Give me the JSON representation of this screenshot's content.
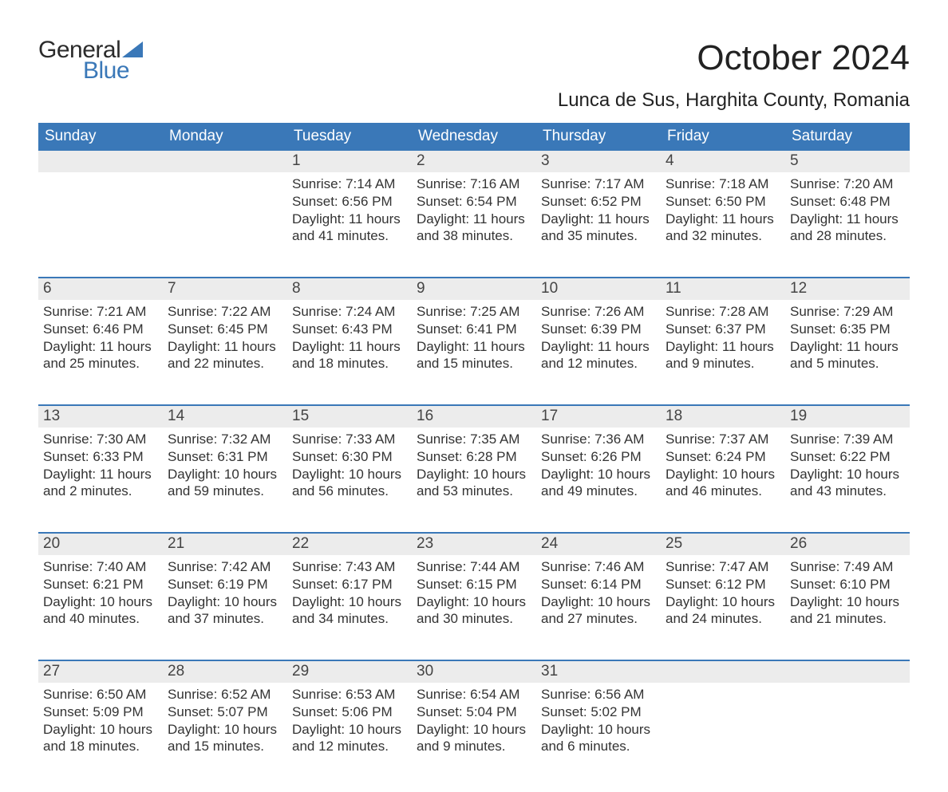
{
  "logo": {
    "top": "General",
    "bottom": "Blue",
    "top_color": "#2b2b2b",
    "bottom_color": "#3a78b8"
  },
  "title": "October 2024",
  "location": "Lunca de Sus, Harghita County, Romania",
  "colors": {
    "header_bg": "#3a78b8",
    "header_fg": "#ffffff",
    "daynum_bg": "#ececec",
    "week_border": "#3a78b8",
    "text": "#333333",
    "background": "#ffffff"
  },
  "typography": {
    "title_fontsize": 44,
    "location_fontsize": 24,
    "dow_fontsize": 19,
    "daynum_fontsize": 19,
    "body_fontsize": 17
  },
  "days_of_week": [
    "Sunday",
    "Monday",
    "Tuesday",
    "Wednesday",
    "Thursday",
    "Friday",
    "Saturday"
  ],
  "weeks": [
    [
      {
        "n": "",
        "sr": "",
        "ss": "",
        "dl1": "",
        "dl2": ""
      },
      {
        "n": "",
        "sr": "",
        "ss": "",
        "dl1": "",
        "dl2": ""
      },
      {
        "n": "1",
        "sr": "Sunrise: 7:14 AM",
        "ss": "Sunset: 6:56 PM",
        "dl1": "Daylight: 11 hours",
        "dl2": "and 41 minutes."
      },
      {
        "n": "2",
        "sr": "Sunrise: 7:16 AM",
        "ss": "Sunset: 6:54 PM",
        "dl1": "Daylight: 11 hours",
        "dl2": "and 38 minutes."
      },
      {
        "n": "3",
        "sr": "Sunrise: 7:17 AM",
        "ss": "Sunset: 6:52 PM",
        "dl1": "Daylight: 11 hours",
        "dl2": "and 35 minutes."
      },
      {
        "n": "4",
        "sr": "Sunrise: 7:18 AM",
        "ss": "Sunset: 6:50 PM",
        "dl1": "Daylight: 11 hours",
        "dl2": "and 32 minutes."
      },
      {
        "n": "5",
        "sr": "Sunrise: 7:20 AM",
        "ss": "Sunset: 6:48 PM",
        "dl1": "Daylight: 11 hours",
        "dl2": "and 28 minutes."
      }
    ],
    [
      {
        "n": "6",
        "sr": "Sunrise: 7:21 AM",
        "ss": "Sunset: 6:46 PM",
        "dl1": "Daylight: 11 hours",
        "dl2": "and 25 minutes."
      },
      {
        "n": "7",
        "sr": "Sunrise: 7:22 AM",
        "ss": "Sunset: 6:45 PM",
        "dl1": "Daylight: 11 hours",
        "dl2": "and 22 minutes."
      },
      {
        "n": "8",
        "sr": "Sunrise: 7:24 AM",
        "ss": "Sunset: 6:43 PM",
        "dl1": "Daylight: 11 hours",
        "dl2": "and 18 minutes."
      },
      {
        "n": "9",
        "sr": "Sunrise: 7:25 AM",
        "ss": "Sunset: 6:41 PM",
        "dl1": "Daylight: 11 hours",
        "dl2": "and 15 minutes."
      },
      {
        "n": "10",
        "sr": "Sunrise: 7:26 AM",
        "ss": "Sunset: 6:39 PM",
        "dl1": "Daylight: 11 hours",
        "dl2": "and 12 minutes."
      },
      {
        "n": "11",
        "sr": "Sunrise: 7:28 AM",
        "ss": "Sunset: 6:37 PM",
        "dl1": "Daylight: 11 hours",
        "dl2": "and 9 minutes."
      },
      {
        "n": "12",
        "sr": "Sunrise: 7:29 AM",
        "ss": "Sunset: 6:35 PM",
        "dl1": "Daylight: 11 hours",
        "dl2": "and 5 minutes."
      }
    ],
    [
      {
        "n": "13",
        "sr": "Sunrise: 7:30 AM",
        "ss": "Sunset: 6:33 PM",
        "dl1": "Daylight: 11 hours",
        "dl2": "and 2 minutes."
      },
      {
        "n": "14",
        "sr": "Sunrise: 7:32 AM",
        "ss": "Sunset: 6:31 PM",
        "dl1": "Daylight: 10 hours",
        "dl2": "and 59 minutes."
      },
      {
        "n": "15",
        "sr": "Sunrise: 7:33 AM",
        "ss": "Sunset: 6:30 PM",
        "dl1": "Daylight: 10 hours",
        "dl2": "and 56 minutes."
      },
      {
        "n": "16",
        "sr": "Sunrise: 7:35 AM",
        "ss": "Sunset: 6:28 PM",
        "dl1": "Daylight: 10 hours",
        "dl2": "and 53 minutes."
      },
      {
        "n": "17",
        "sr": "Sunrise: 7:36 AM",
        "ss": "Sunset: 6:26 PM",
        "dl1": "Daylight: 10 hours",
        "dl2": "and 49 minutes."
      },
      {
        "n": "18",
        "sr": "Sunrise: 7:37 AM",
        "ss": "Sunset: 6:24 PM",
        "dl1": "Daylight: 10 hours",
        "dl2": "and 46 minutes."
      },
      {
        "n": "19",
        "sr": "Sunrise: 7:39 AM",
        "ss": "Sunset: 6:22 PM",
        "dl1": "Daylight: 10 hours",
        "dl2": "and 43 minutes."
      }
    ],
    [
      {
        "n": "20",
        "sr": "Sunrise: 7:40 AM",
        "ss": "Sunset: 6:21 PM",
        "dl1": "Daylight: 10 hours",
        "dl2": "and 40 minutes."
      },
      {
        "n": "21",
        "sr": "Sunrise: 7:42 AM",
        "ss": "Sunset: 6:19 PM",
        "dl1": "Daylight: 10 hours",
        "dl2": "and 37 minutes."
      },
      {
        "n": "22",
        "sr": "Sunrise: 7:43 AM",
        "ss": "Sunset: 6:17 PM",
        "dl1": "Daylight: 10 hours",
        "dl2": "and 34 minutes."
      },
      {
        "n": "23",
        "sr": "Sunrise: 7:44 AM",
        "ss": "Sunset: 6:15 PM",
        "dl1": "Daylight: 10 hours",
        "dl2": "and 30 minutes."
      },
      {
        "n": "24",
        "sr": "Sunrise: 7:46 AM",
        "ss": "Sunset: 6:14 PM",
        "dl1": "Daylight: 10 hours",
        "dl2": "and 27 minutes."
      },
      {
        "n": "25",
        "sr": "Sunrise: 7:47 AM",
        "ss": "Sunset: 6:12 PM",
        "dl1": "Daylight: 10 hours",
        "dl2": "and 24 minutes."
      },
      {
        "n": "26",
        "sr": "Sunrise: 7:49 AM",
        "ss": "Sunset: 6:10 PM",
        "dl1": "Daylight: 10 hours",
        "dl2": "and 21 minutes."
      }
    ],
    [
      {
        "n": "27",
        "sr": "Sunrise: 6:50 AM",
        "ss": "Sunset: 5:09 PM",
        "dl1": "Daylight: 10 hours",
        "dl2": "and 18 minutes."
      },
      {
        "n": "28",
        "sr": "Sunrise: 6:52 AM",
        "ss": "Sunset: 5:07 PM",
        "dl1": "Daylight: 10 hours",
        "dl2": "and 15 minutes."
      },
      {
        "n": "29",
        "sr": "Sunrise: 6:53 AM",
        "ss": "Sunset: 5:06 PM",
        "dl1": "Daylight: 10 hours",
        "dl2": "and 12 minutes."
      },
      {
        "n": "30",
        "sr": "Sunrise: 6:54 AM",
        "ss": "Sunset: 5:04 PM",
        "dl1": "Daylight: 10 hours",
        "dl2": "and 9 minutes."
      },
      {
        "n": "31",
        "sr": "Sunrise: 6:56 AM",
        "ss": "Sunset: 5:02 PM",
        "dl1": "Daylight: 10 hours",
        "dl2": "and 6 minutes."
      },
      {
        "n": "",
        "sr": "",
        "ss": "",
        "dl1": "",
        "dl2": ""
      },
      {
        "n": "",
        "sr": "",
        "ss": "",
        "dl1": "",
        "dl2": ""
      }
    ]
  ]
}
